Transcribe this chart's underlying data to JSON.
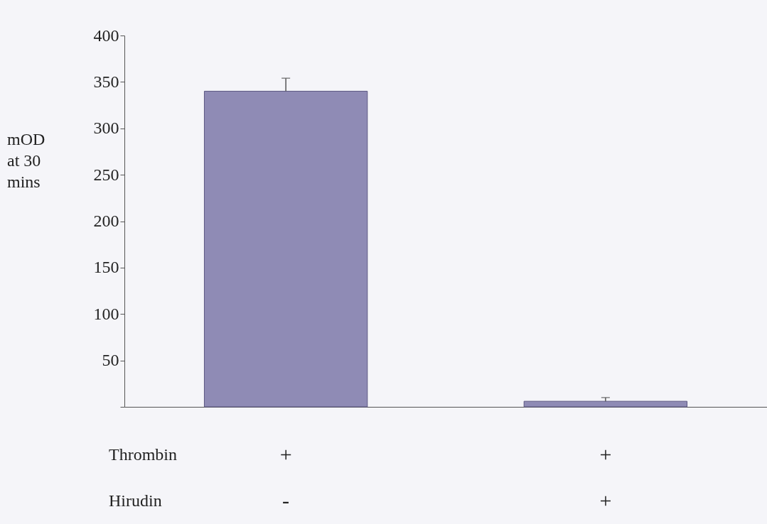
{
  "chart_data": {
    "type": "bar",
    "ylabel": "mOD\nat 30\nmins",
    "categories": [
      null,
      null
    ],
    "values": [
      340,
      6
    ],
    "errors": [
      [
        340,
        354
      ],
      [
        6,
        10
      ]
    ],
    "color": "#8f8bb5",
    "ylim": [
      0,
      400
    ],
    "yticks": [
      {
        "value": 0,
        "label": null
      },
      50,
      100,
      150,
      200,
      250,
      300,
      350,
      400
    ],
    "grid": false,
    "annotations": [
      "Thrombin",
      "+",
      "+",
      "Hirudin",
      "-",
      "+"
    ]
  }
}
